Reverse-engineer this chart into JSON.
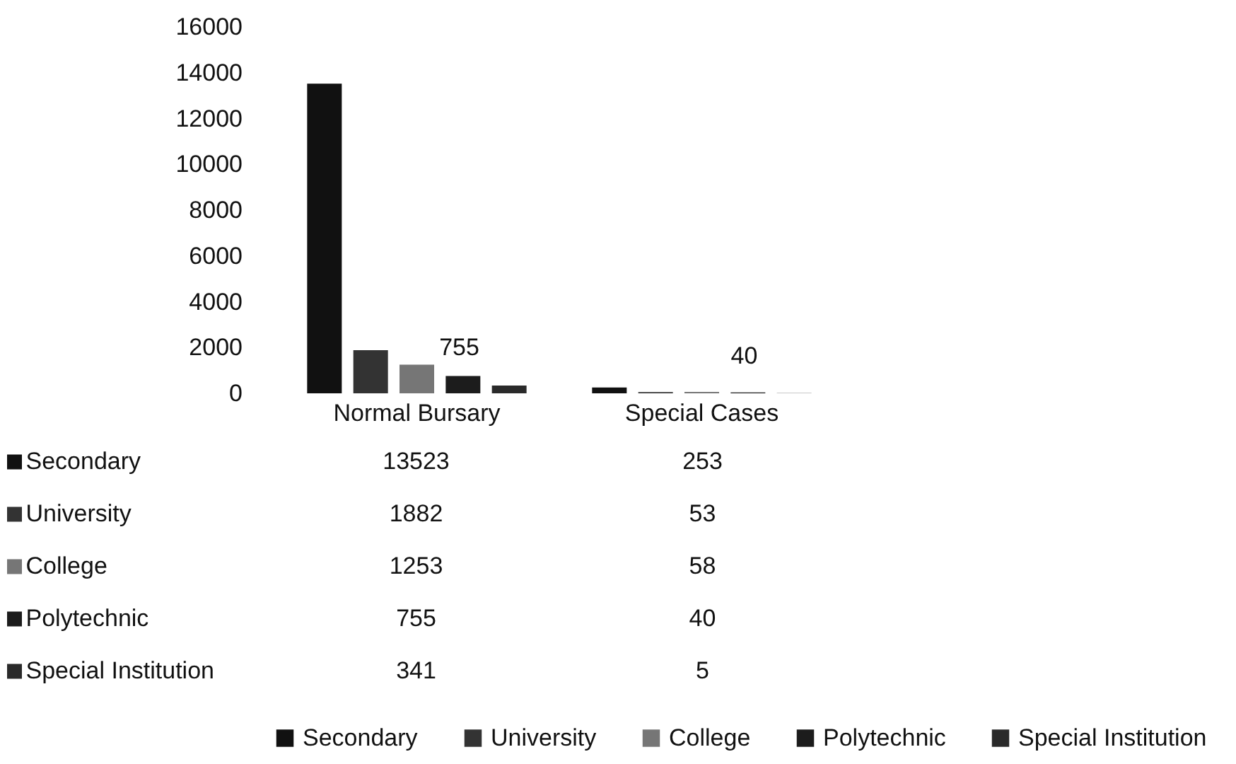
{
  "chart_data": {
    "type": "bar",
    "categories": [
      "Normal Bursary",
      "Special Cases"
    ],
    "series": [
      {
        "name": "Secondary",
        "color": "#111111",
        "values": [
          13523,
          253
        ]
      },
      {
        "name": "University",
        "color": "#333333",
        "values": [
          1882,
          53
        ]
      },
      {
        "name": "College",
        "color": "#767676",
        "values": [
          1253,
          58
        ]
      },
      {
        "name": "Polytechnic",
        "color": "#1c1c1c",
        "values": [
          755,
          40
        ]
      },
      {
        "name": "Special Institution",
        "color": "#2a2a2a",
        "values": [
          341,
          5
        ]
      }
    ],
    "ylim": [
      0,
      16000
    ],
    "yticks": [
      0,
      2000,
      4000,
      6000,
      8000,
      10000,
      12000,
      14000,
      16000
    ],
    "legend": "bottom",
    "data_labels": true,
    "annotations": [
      "755",
      "40"
    ]
  }
}
